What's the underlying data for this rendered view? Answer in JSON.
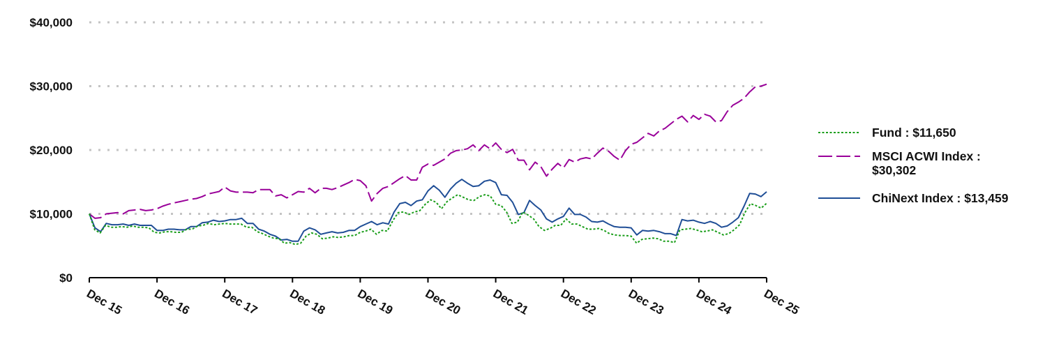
{
  "chart_data": {
    "type": "line",
    "title": "",
    "xlabel": "",
    "ylabel": "",
    "ylim": [
      0,
      40000
    ],
    "yticks": [
      0,
      10000,
      20000,
      30000,
      40000
    ],
    "ytick_labels": [
      "$0",
      "$10,000",
      "$20,000",
      "$30,000",
      "$40,000"
    ],
    "xtick_labels": [
      "Dec 15",
      "Dec 16",
      "Dec 17",
      "Dec 18",
      "Dec 19",
      "Dec 20",
      "Dec 21",
      "Dec 22",
      "Dec 23",
      "Dec 24",
      "Dec 25"
    ],
    "grid": "horizontal dotted",
    "legend_position": "right",
    "x_points_per_year": 12,
    "series": [
      {
        "name": "Fund",
        "legend_label": "Fund : $11,650",
        "color": "#1a9e1a",
        "style": "dotted",
        "final_value": 11650,
        "values": [
          10000,
          7500,
          7000,
          8200,
          7900,
          7900,
          8000,
          7900,
          8100,
          7900,
          7900,
          7800,
          7100,
          7000,
          7200,
          7200,
          7100,
          7100,
          7600,
          7600,
          8100,
          8200,
          8500,
          8300,
          8400,
          8500,
          8400,
          8400,
          8400,
          7900,
          7900,
          7200,
          6900,
          6500,
          6200,
          6100,
          5400,
          5500,
          5200,
          5400,
          6500,
          7000,
          6800,
          6100,
          6200,
          6400,
          6300,
          6400,
          6600,
          6600,
          7100,
          7300,
          7600,
          6800,
          7400,
          7300,
          8900,
          10200,
          10300,
          9900,
          10300,
          10500,
          11500,
          12200,
          11800,
          10800,
          11900,
          12500,
          13000,
          12600,
          12200,
          12100,
          12700,
          13000,
          12800,
          11500,
          11300,
          10300,
          8500,
          8700,
          10300,
          9800,
          9200,
          8000,
          7400,
          7700,
          8200,
          8200,
          9200,
          8400,
          8400,
          8000,
          7600,
          7600,
          7700,
          7400,
          6900,
          6700,
          6600,
          6600,
          6500,
          5400,
          6000,
          6100,
          6200,
          6100,
          5700,
          5700,
          5500,
          7500,
          7600,
          7700,
          7500,
          7200,
          7300,
          7500,
          7100,
          6700,
          6900,
          7500,
          8300,
          10200,
          11600,
          11300,
          10900,
          11650
        ]
      },
      {
        "name": "MSCI ACWI Index",
        "legend_label": "MSCI ACWI Index : $30,302",
        "color": "#990099",
        "style": "dashed",
        "final_value": 30302,
        "values": [
          10000,
          9300,
          9400,
          10000,
          10100,
          10200,
          10000,
          10500,
          10600,
          10700,
          10500,
          10600,
          10800,
          11200,
          11500,
          11700,
          11900,
          12100,
          12300,
          12400,
          12700,
          13100,
          13300,
          13500,
          14200,
          13600,
          13400,
          13400,
          13400,
          13300,
          13800,
          13800,
          13800,
          12800,
          13000,
          12500,
          13000,
          13500,
          13400,
          14000,
          13300,
          14000,
          14000,
          13800,
          14100,
          14500,
          14900,
          15400,
          15200,
          14400,
          12000,
          13200,
          14000,
          14300,
          14900,
          15500,
          16000,
          15300,
          15300,
          17300,
          17800,
          17600,
          18100,
          18600,
          19500,
          19900,
          20000,
          20200,
          20800,
          19900,
          20800,
          20200,
          21100,
          20100,
          19600,
          20100,
          18400,
          18400,
          16900,
          18100,
          17400,
          15900,
          17000,
          17900,
          17200,
          18500,
          18100,
          18600,
          18800,
          18600,
          19500,
          20300,
          19800,
          19000,
          18400,
          19900,
          20900,
          21200,
          21900,
          22600,
          22200,
          23000,
          23400,
          24100,
          24800,
          25300,
          24400,
          25400,
          24800,
          25600,
          25300,
          24400,
          24600,
          26000,
          27000,
          27500,
          28100,
          29100,
          29900,
          30000,
          30302
        ]
      },
      {
        "name": "ChiNext Index",
        "legend_label": "ChiNext Index : $13,459",
        "color": "#1f4e96",
        "style": "solid",
        "final_value": 13459,
        "values": [
          10000,
          7800,
          7200,
          8500,
          8300,
          8300,
          8400,
          8200,
          8400,
          8200,
          8200,
          8200,
          7400,
          7400,
          7600,
          7600,
          7500,
          7500,
          8000,
          8000,
          8600,
          8700,
          9000,
          8800,
          8900,
          9100,
          9100,
          9300,
          8500,
          8500,
          7600,
          7300,
          6800,
          6500,
          5900,
          6000,
          5700,
          5700,
          7300,
          7800,
          7500,
          6800,
          7000,
          7200,
          7000,
          7100,
          7400,
          7400,
          8000,
          8400,
          8800,
          8300,
          8600,
          8400,
          10300,
          11600,
          11800,
          11300,
          12000,
          12200,
          13600,
          14400,
          13700,
          12600,
          13900,
          14800,
          15400,
          14800,
          14300,
          14400,
          15100,
          15300,
          14900,
          13000,
          12900,
          11800,
          9900,
          10200,
          12100,
          11300,
          10600,
          9200,
          8700,
          9200,
          9600,
          10900,
          9900,
          9900,
          9500,
          8800,
          8700,
          8900,
          8400,
          8000,
          7900,
          7900,
          7800,
          6700,
          7400,
          7300,
          7400,
          7200,
          6900,
          6900,
          6600,
          9100,
          8900,
          9000,
          8700,
          8500,
          8800,
          8500,
          7900,
          8100,
          8700,
          9400,
          11200,
          13200,
          13100,
          12700,
          13459
        ]
      }
    ]
  },
  "legend": {
    "items": [
      {
        "label": "Fund : $11,650"
      },
      {
        "label": "MSCI ACWI Index : $30,302"
      },
      {
        "label": "ChiNext Index : $13,459"
      }
    ]
  }
}
